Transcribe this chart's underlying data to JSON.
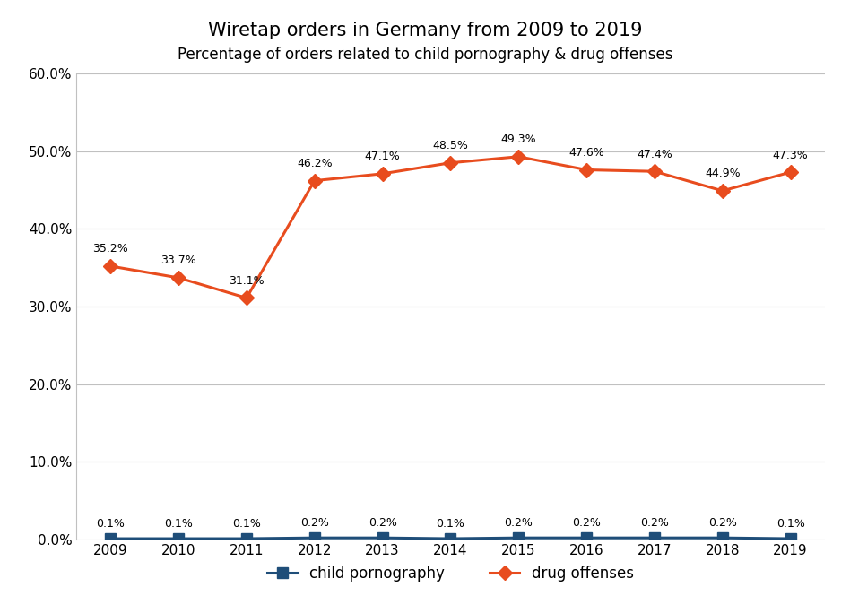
{
  "title": "Wiretap orders in Germany from 2009 to 2019",
  "subtitle": "Percentage of orders related to child pornography & drug offenses",
  "years": [
    2009,
    2010,
    2011,
    2012,
    2013,
    2014,
    2015,
    2016,
    2017,
    2018,
    2019
  ],
  "child_porn": [
    0.1,
    0.1,
    0.1,
    0.2,
    0.2,
    0.1,
    0.2,
    0.2,
    0.2,
    0.2,
    0.1
  ],
  "drug_offenses": [
    35.2,
    33.7,
    31.1,
    46.2,
    47.1,
    48.5,
    49.3,
    47.6,
    47.4,
    44.9,
    47.3
  ],
  "child_porn_color": "#1f4e79",
  "drug_offenses_color": "#e84c1e",
  "ylim": [
    0,
    60
  ],
  "yticks": [
    0,
    10,
    20,
    30,
    40,
    50,
    60
  ],
  "ytick_labels": [
    "0.0%",
    "10.0%",
    "20.0%",
    "30.0%",
    "40.0%",
    "50.0%",
    "60.0%"
  ],
  "title_fontsize": 15,
  "subtitle_fontsize": 12,
  "legend_label_child": "child pornography",
  "legend_label_drug": "drug offenses",
  "background_color": "#ffffff",
  "grid_color": "#c0c0c0",
  "axis_color": "#c0c0c0",
  "label_fontsize": 9,
  "tick_fontsize": 11,
  "marker_size": 8,
  "line_width": 2.2
}
